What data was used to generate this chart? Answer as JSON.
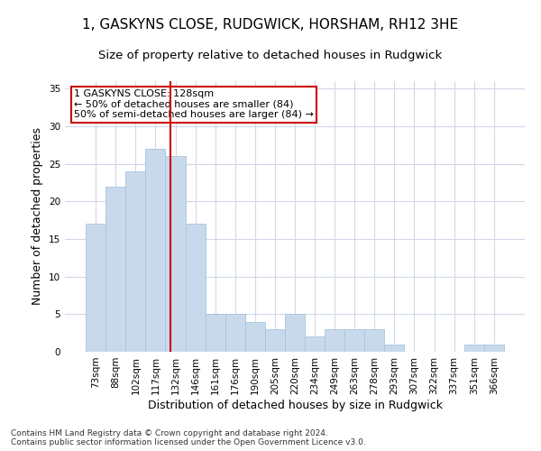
{
  "title1": "1, GASKYNS CLOSE, RUDGWICK, HORSHAM, RH12 3HE",
  "title2": "Size of property relative to detached houses in Rudgwick",
  "xlabel": "Distribution of detached houses by size in Rudgwick",
  "ylabel": "Number of detached properties",
  "categories": [
    "73sqm",
    "88sqm",
    "102sqm",
    "117sqm",
    "132sqm",
    "146sqm",
    "161sqm",
    "176sqm",
    "190sqm",
    "205sqm",
    "220sqm",
    "234sqm",
    "249sqm",
    "263sqm",
    "278sqm",
    "293sqm",
    "307sqm",
    "322sqm",
    "337sqm",
    "351sqm",
    "366sqm"
  ],
  "values": [
    17,
    22,
    24,
    27,
    26,
    17,
    5,
    5,
    4,
    3,
    5,
    2,
    3,
    3,
    3,
    1,
    0,
    0,
    0,
    1,
    1
  ],
  "bar_color": "#c9d9ec",
  "bar_edge_color": "#a8c4de",
  "grid_color": "#d0d8e8",
  "annotation_line1": "1 GASKYNS CLOSE: 128sqm",
  "annotation_line2": "← 50% of detached houses are smaller (84)",
  "annotation_line3": "50% of semi-detached houses are larger (84) →",
  "annotation_box_color": "#ffffff",
  "annotation_border_color": "#cc0000",
  "vline_color": "#cc0000",
  "ylim": [
    0,
    36
  ],
  "yticks": [
    0,
    5,
    10,
    15,
    20,
    25,
    30,
    35
  ],
  "footnote": "Contains HM Land Registry data © Crown copyright and database right 2024.\nContains public sector information licensed under the Open Government Licence v3.0.",
  "title1_fontsize": 11,
  "title2_fontsize": 9.5,
  "xlabel_fontsize": 9,
  "ylabel_fontsize": 9,
  "footnote_fontsize": 6.5,
  "annotation_fontsize": 8,
  "tick_fontsize": 7.5
}
